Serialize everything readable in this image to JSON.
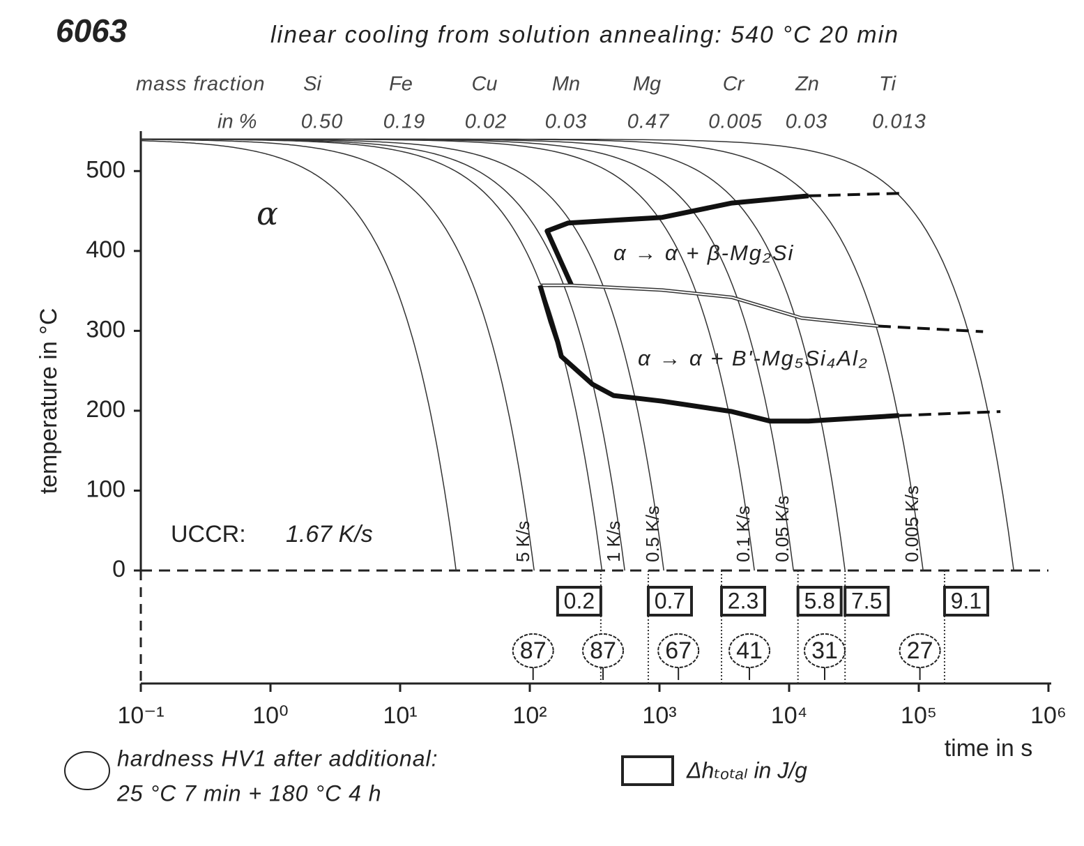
{
  "chart_data": {
    "type": "cct",
    "title": "6063",
    "subtitle": "linear cooling from solution annealing: 540 °C 20 min",
    "composition": {
      "label": "mass fraction",
      "unit": "in %",
      "elements": [
        "Si",
        "Fe",
        "Cu",
        "Mn",
        "Mg",
        "Cr",
        "Zn",
        "Ti"
      ],
      "values": [
        "0.50",
        "0.19",
        "0.02",
        "0.03",
        "0.47",
        "0.005",
        "0.03",
        "0.013"
      ]
    },
    "x_label": "time in s",
    "y_label": "temperature in °C",
    "xlim": [
      0.1,
      1000000
    ],
    "xscale": "log",
    "xticks": [
      {
        "value": 0.1,
        "label": "10⁻¹"
      },
      {
        "value": 1,
        "label": "10⁰"
      },
      {
        "value": 10,
        "label": "10¹"
      },
      {
        "value": 100,
        "label": "10²"
      },
      {
        "value": 1000,
        "label": "10³"
      },
      {
        "value": 10000,
        "label": "10⁴"
      },
      {
        "value": 100000,
        "label": "10⁵"
      },
      {
        "value": 1000000,
        "label": "10⁶"
      }
    ],
    "ylim": [
      0,
      550
    ],
    "yticks": [
      0,
      100,
      200,
      300,
      400,
      500
    ],
    "start_temperature": 540,
    "cooling_curves": [
      {
        "rate": 20
      },
      {
        "rate": 5,
        "label": "5 K/s"
      },
      {
        "rate": 1.5
      },
      {
        "rate": 1,
        "label": "1 K/s"
      },
      {
        "rate": 0.5,
        "label": "0.5 K/s"
      },
      {
        "rate": 0.1,
        "label": "0.1 K/s"
      },
      {
        "rate": 0.05,
        "label": "0.05 K/s"
      },
      {
        "rate": 0.02
      },
      {
        "rate": 0.005,
        "label": "0.005 K/s"
      },
      {
        "rate": 0.001
      }
    ],
    "boundaries": [
      {
        "style": "thick",
        "x": [
          210,
          136,
          198,
          1050,
          3620,
          14100
        ],
        "y": [
          357,
          425,
          435,
          442,
          460,
          469
        ]
      },
      {
        "style": "dashed",
        "x": [
          14100,
          70500
        ],
        "y": [
          469,
          472
        ]
      },
      {
        "style": "double",
        "x": [
          120,
          210,
          1050,
          3620,
          12500,
          48700
        ],
        "y": [
          357,
          357,
          351,
          342,
          316,
          306
        ]
      },
      {
        "style": "dashed",
        "x": [
          48700,
          313000
        ],
        "y": [
          306,
          299
        ]
      },
      {
        "style": "thick",
        "x": [
          120,
          145,
          164,
          175,
          305,
          442,
          1050,
          3620,
          7160,
          14100,
          70500
        ],
        "y": [
          357,
          312,
          286,
          268,
          233,
          219,
          212,
          199,
          187,
          187,
          194
        ]
      },
      {
        "style": "dashed",
        "x": [
          70500,
          426000
        ],
        "y": [
          194,
          199
        ]
      }
    ],
    "phase_alpha": "α",
    "phase_beta": "α → α + β-Mg₂Si",
    "phase_b": "α → α + B'-Mg₅Si₄Al₂",
    "uccr_label": "UCCR:",
    "uccr_value": "1.67 K/s",
    "enthalpy": {
      "times": [
        353,
        820,
        3010,
        11700,
        27000,
        158000
      ],
      "values": [
        0.2,
        0.7,
        2.3,
        5.8,
        7.5,
        9.1
      ]
    },
    "hardness": {
      "times": [
        106,
        367,
        1400,
        4940,
        18800,
        102000
      ],
      "values": [
        87,
        87,
        67,
        41,
        31,
        27
      ]
    },
    "legend_hardness": [
      "hardness HV1 after additional:",
      "25 °C 7 min + 180 °C 4 h"
    ],
    "legend_enthalpy": "Δhₜₒₜₐₗ in J/g"
  }
}
